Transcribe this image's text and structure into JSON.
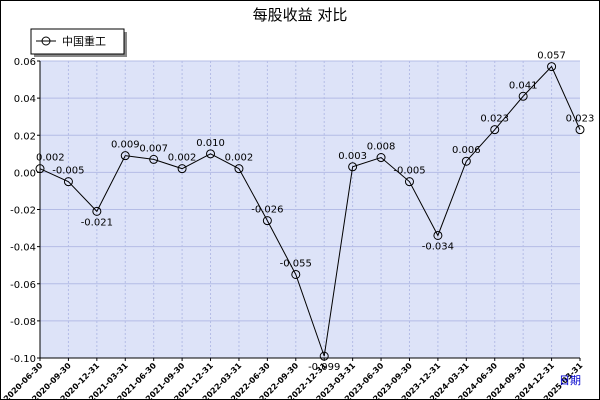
{
  "chart_data": {
    "type": "line",
    "title": "每股收益  对比",
    "xlabel": "日期",
    "ylabel": "",
    "ylim": [
      -0.1,
      0.06
    ],
    "yticks": [
      "0.06",
      "0.04",
      "0.02",
      "0.00",
      "-0.02",
      "-0.04",
      "-0.06",
      "-0.08",
      "-0.10"
    ],
    "grid": true,
    "legend_position": "top-left",
    "categories": [
      "2020-06-30",
      "2020-09-30",
      "2020-12-31",
      "2021-03-31",
      "2021-06-30",
      "2021-09-30",
      "2021-12-31",
      "2022-03-31",
      "2022-06-30",
      "2022-09-30",
      "2022-12-31",
      "2023-03-31",
      "2023-06-30",
      "2023-09-30",
      "2023-12-31",
      "2024-03-31",
      "2024-06-30",
      "2024-09-30",
      "2024-12-31",
      "2025-03-31"
    ],
    "series": [
      {
        "name": "中国重工",
        "color": "#000000",
        "values": [
          0.002,
          -0.005,
          -0.021,
          0.009,
          0.007,
          0.002,
          0.01,
          0.002,
          -0.026,
          -0.055,
          -0.099,
          0.003,
          0.008,
          -0.005,
          -0.034,
          0.006,
          0.023,
          0.041,
          0.057,
          0.023
        ],
        "labels": [
          "0.002",
          "-0.005",
          "-0.021",
          "0.009",
          "0.007",
          "0.002",
          "0.010",
          "0.002",
          "-0.026",
          "-0.055",
          "-0.099",
          "0.003",
          "0.008",
          "-0.005",
          "-0.034",
          "0.006",
          "0.023",
          "0.041",
          "0.057",
          "0.023"
        ]
      }
    ],
    "colors": {
      "plot_background": "#dde3f8",
      "grid": "#b4bce6",
      "line": "#000000"
    }
  }
}
